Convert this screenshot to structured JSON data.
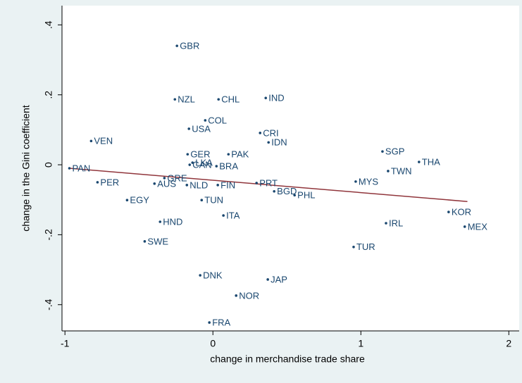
{
  "chart_data": {
    "type": "scatter",
    "xlabel": "change in merchandise trade share",
    "ylabel": "change in the Gini coefficient",
    "labels": [
      "GBR",
      "NZL",
      "CHL",
      "IND",
      "COL",
      "USA",
      "VEN",
      "CRI",
      "IDN",
      "GER",
      "PAK",
      "LKA",
      "CAN",
      "BRA",
      "PAN",
      "GRE",
      "PER",
      "AUS",
      "NLD",
      "FIN",
      "PRT",
      "BGD",
      "PHL",
      "MYS",
      "SGP",
      "THA",
      "TWN",
      "EGY",
      "TUN",
      "ITA",
      "HND",
      "IRL",
      "KOR",
      "MEX",
      "SWE",
      "TUR",
      "DNK",
      "JAP",
      "NOR",
      "FRA"
    ],
    "x": [
      -0.243,
      -0.257,
      0.038,
      0.357,
      -0.052,
      -0.162,
      -0.823,
      0.319,
      0.376,
      -0.171,
      0.105,
      -0.138,
      -0.157,
      0.024,
      -0.97,
      -0.328,
      -0.78,
      -0.395,
      -0.176,
      0.033,
      0.295,
      0.414,
      0.552,
      0.965,
      1.146,
      1.393,
      1.184,
      -0.58,
      -0.076,
      0.071,
      -0.357,
      1.17,
      1.593,
      1.702,
      -0.461,
      0.951,
      -0.086,
      0.371,
      0.157,
      -0.024
    ],
    "values": [
      0.34,
      0.187,
      0.187,
      0.191,
      0.127,
      0.103,
      0.068,
      0.091,
      0.064,
      0.03,
      0.03,
      0.006,
      0.0,
      -0.004,
      -0.01,
      -0.038,
      -0.05,
      -0.054,
      -0.058,
      -0.058,
      -0.052,
      -0.076,
      -0.087,
      -0.048,
      0.038,
      0.008,
      -0.018,
      -0.101,
      -0.101,
      -0.145,
      -0.163,
      -0.167,
      -0.135,
      -0.177,
      -0.219,
      -0.235,
      -0.316,
      -0.328,
      -0.374,
      -0.451
    ],
    "color": "#1a476f",
    "fit": {
      "x": [
        -0.97,
        1.72
      ],
      "values": [
        -0.01,
        -0.105
      ],
      "color": "#90353b"
    },
    "xlim": [
      -1.02,
      2.07
    ],
    "ylim": [
      -0.475,
      0.455
    ],
    "xticks": [
      -1,
      0,
      1,
      2
    ],
    "yticks": [
      {
        "value": 0.4,
        "label": ".4"
      },
      {
        "value": 0.2,
        "label": ".2"
      },
      0,
      {
        "value": -0.2,
        "label": "-.2"
      },
      {
        "value": -0.4,
        "label": "-.4"
      }
    ]
  }
}
